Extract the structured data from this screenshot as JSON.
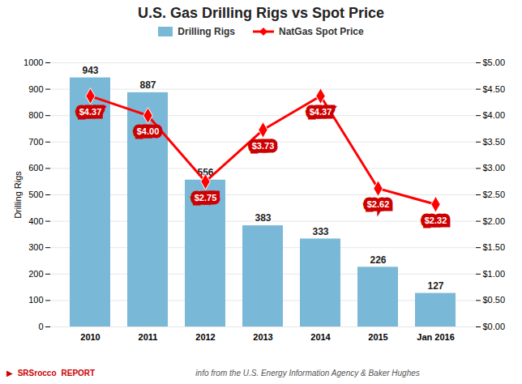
{
  "chart_data": {
    "type": "bar",
    "title": "U.S. Gas Drilling Rigs vs Spot Price",
    "ylabel": "Drilling Rigs",
    "categories": [
      "2010",
      "2011",
      "2012",
      "2013",
      "2014",
      "2015",
      "Jan 2016"
    ],
    "series": [
      {
        "name": "Drilling Rigs",
        "type": "bar",
        "color": "#7ab8d8",
        "values": [
          943,
          887,
          556,
          383,
          333,
          226,
          127
        ]
      },
      {
        "name": "NatGas Spot Price",
        "type": "line",
        "axis": "y2",
        "color": "#ff0000",
        "marker": "diamond",
        "values": [
          4.37,
          4.0,
          2.75,
          3.73,
          4.37,
          2.62,
          2.32
        ],
        "value_labels": [
          "$4.37",
          "$4.00",
          "$2.75",
          "$3.73",
          "$4.37",
          "$2.62",
          "$2.32"
        ]
      }
    ],
    "ylim": [
      0,
      1000
    ],
    "yticks": [
      0,
      100,
      200,
      300,
      400,
      500,
      600,
      700,
      800,
      900,
      1000
    ],
    "y2lim": [
      0,
      5.0
    ],
    "y2ticks": [
      {
        "value": 0.0,
        "label": "$0.00"
      },
      {
        "value": 0.5,
        "label": "$0.50"
      },
      {
        "value": 1.0,
        "label": "$1.00"
      },
      {
        "value": 1.5,
        "label": "$1.50"
      },
      {
        "value": 2.0,
        "label": "$2.00"
      },
      {
        "value": 2.5,
        "label": "$2.50"
      },
      {
        "value": 3.0,
        "label": "$3.00"
      },
      {
        "value": 3.5,
        "label": "$3.50"
      },
      {
        "value": 4.0,
        "label": "$4.00"
      },
      {
        "value": 4.5,
        "label": "$4.50"
      },
      {
        "value": 5.0,
        "label": "$5.00"
      }
    ],
    "grid": true,
    "legend": "top",
    "data_labels": true,
    "annotations": [
      "▶",
      "SRSrocco",
      "REPORT",
      "info from the U.S. Energy Information Agency & Baker Hughes"
    ]
  }
}
